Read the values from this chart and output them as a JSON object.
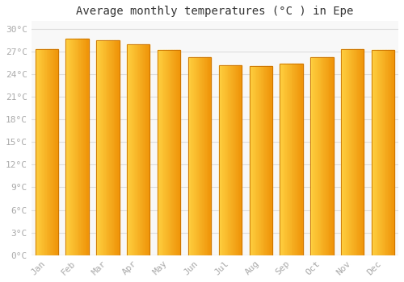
{
  "months": [
    "Jan",
    "Feb",
    "Mar",
    "Apr",
    "May",
    "Jun",
    "Jul",
    "Aug",
    "Sep",
    "Oct",
    "Nov",
    "Dec"
  ],
  "values": [
    27.3,
    28.7,
    28.5,
    27.9,
    27.2,
    26.2,
    25.2,
    25.1,
    25.4,
    26.2,
    27.3,
    27.2
  ],
  "bar_color_left": "#FFD040",
  "bar_color_right": "#F0950A",
  "bar_edge_color": "#C87000",
  "title": "Average monthly temperatures (°C ) in Epe",
  "ylim": [
    0,
    31
  ],
  "yticks": [
    0,
    3,
    6,
    9,
    12,
    15,
    18,
    21,
    24,
    27,
    30
  ],
  "background_color": "#ffffff",
  "plot_bg_color": "#f8f8f8",
  "grid_color": "#dddddd",
  "title_fontsize": 10,
  "tick_fontsize": 8,
  "tick_color": "#aaaaaa",
  "font_family": "monospace"
}
